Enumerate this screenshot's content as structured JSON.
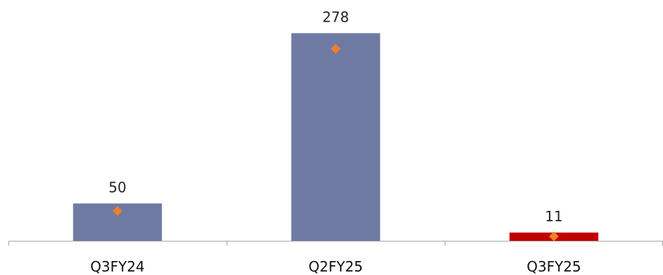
{
  "chart_data": {
    "type": "bar",
    "title": "",
    "xlabel": "",
    "ylabel": "",
    "categories": [
      "Q3FY24",
      "Q2FY25",
      "Q3FY25"
    ],
    "values": [
      50,
      278,
      11
    ],
    "value_labels": [
      "50",
      "278",
      "11"
    ],
    "markers": [
      40,
      257,
      6
    ],
    "bar_colors": [
      "#6f7aa3",
      "#6f7aa3",
      "#c00000"
    ],
    "marker_color": "#f07f28",
    "axis_color": "#a6a6a6",
    "ylim": [
      0,
      300
    ],
    "grid": false,
    "legend": "none"
  }
}
